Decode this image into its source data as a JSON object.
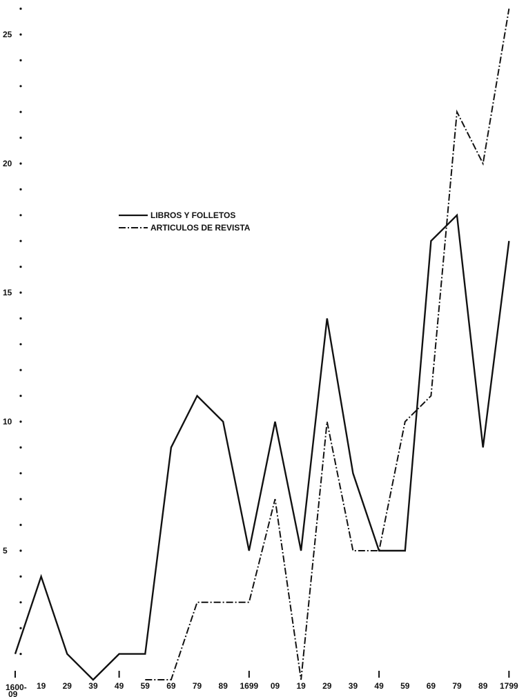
{
  "chart_data": {
    "type": "line",
    "categories": [
      "1600-09",
      "19",
      "29",
      "39",
      "49",
      "59",
      "69",
      "79",
      "89",
      "1699",
      "09",
      "19",
      "29",
      "39",
      "49",
      "59",
      "69",
      "79",
      "89",
      "1799"
    ],
    "series": [
      {
        "name": "LIBROS Y FOLLETOS",
        "style": "solid",
        "color": "#111111",
        "values": [
          1,
          4,
          1,
          0,
          1,
          1,
          9,
          11,
          10,
          5,
          10,
          5,
          14,
          8,
          5,
          5,
          17,
          18,
          9,
          17
        ]
      },
      {
        "name": "ARTICULOS DE REVISTA",
        "style": "dashdot",
        "color": "#111111",
        "values": [
          null,
          null,
          null,
          null,
          null,
          0,
          0,
          3,
          3,
          3,
          7,
          0,
          10,
          5,
          5,
          10,
          11,
          22,
          20,
          26
        ]
      }
    ],
    "y_ticks": [
      5,
      10,
      15,
      20,
      25
    ],
    "ylim": [
      0,
      27
    ],
    "legend_position": "upper-left-center",
    "grid": false
  }
}
